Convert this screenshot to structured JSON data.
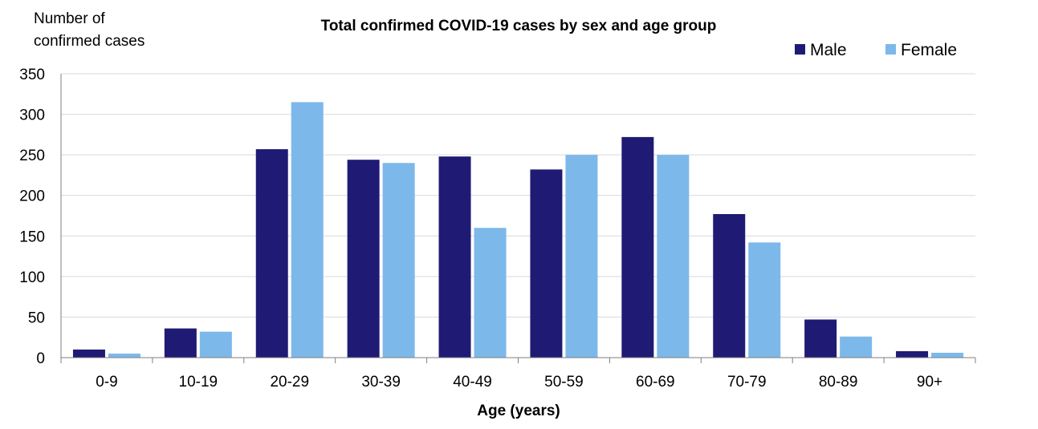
{
  "chart_data": {
    "type": "bar",
    "title": "Total confirmed COVID-19 cases by sex and age group",
    "ylabel_line1": "Number of",
    "ylabel_line2": "confirmed cases",
    "xlabel": "Age (years)",
    "categories": [
      "0-9",
      "10-19",
      "20-29",
      "30-39",
      "40-49",
      "50-59",
      "60-69",
      "70-79",
      "80-89",
      "90+"
    ],
    "series": [
      {
        "name": "Male",
        "color": "#1f1b74",
        "values": [
          10,
          36,
          257,
          244,
          248,
          232,
          272,
          177,
          47,
          8
        ]
      },
      {
        "name": "Female",
        "color": "#7db8ea",
        "values": [
          5,
          32,
          315,
          240,
          160,
          250,
          250,
          142,
          26,
          6
        ]
      }
    ],
    "ylim": [
      0,
      350
    ],
    "yticks": [
      0,
      50,
      100,
      150,
      200,
      250,
      300,
      350
    ],
    "grid": true,
    "legend_position": "top-right"
  }
}
